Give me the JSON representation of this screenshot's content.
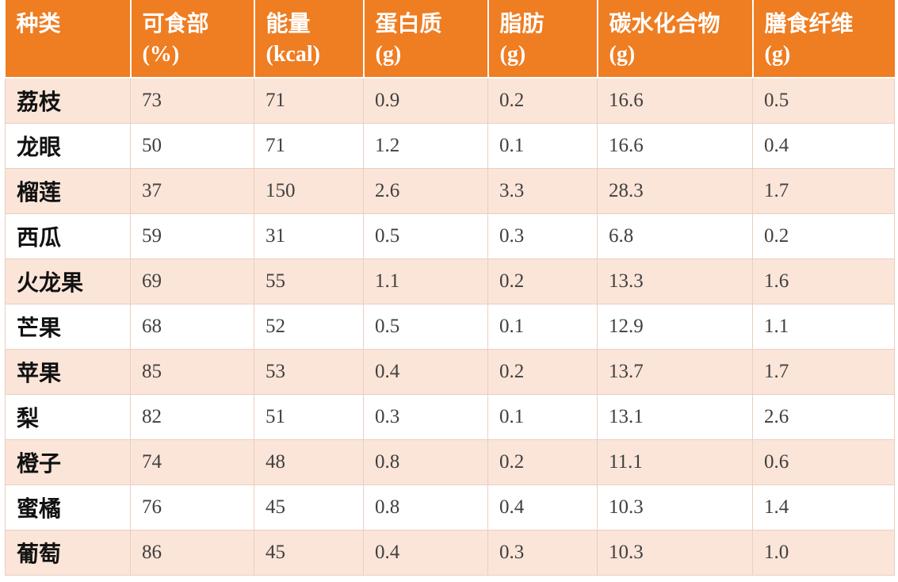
{
  "table": {
    "header": [
      {
        "name": "种类"
      },
      {
        "name": "可食部",
        "unit": "(%)"
      },
      {
        "name": "能量",
        "unit": "(kcal)"
      },
      {
        "name": "蛋白质",
        "unit": "(g)"
      },
      {
        "name": "脂肪",
        "unit": "(g)"
      },
      {
        "name": "碳水化合物",
        "unit": "(g)"
      },
      {
        "name": "膳食纤维",
        "unit": "(g)"
      }
    ],
    "rows": [
      [
        "荔枝",
        "73",
        "71",
        "0.9",
        "0.2",
        "16.6",
        "0.5"
      ],
      [
        "龙眼",
        "50",
        "71",
        "1.2",
        "0.1",
        "16.6",
        "0.4"
      ],
      [
        "榴莲",
        "37",
        "150",
        "2.6",
        "3.3",
        "28.3",
        "1.7"
      ],
      [
        "西瓜",
        "59",
        "31",
        "0.5",
        "0.3",
        "6.8",
        "0.2"
      ],
      [
        "火龙果",
        "69",
        "55",
        "1.1",
        "0.2",
        "13.3",
        "1.6"
      ],
      [
        "芒果",
        "68",
        "52",
        "0.5",
        "0.1",
        "12.9",
        "1.1"
      ],
      [
        "苹果",
        "85",
        "53",
        "0.4",
        "0.2",
        "13.7",
        "1.7"
      ],
      [
        "梨",
        "82",
        "51",
        "0.3",
        "0.1",
        "13.1",
        "2.6"
      ],
      [
        "橙子",
        "74",
        "48",
        "0.8",
        "0.2",
        "11.1",
        "0.6"
      ],
      [
        "蜜橘",
        "76",
        "45",
        "0.8",
        "0.4",
        "10.3",
        "1.4"
      ],
      [
        "葡萄",
        "86",
        "45",
        "0.4",
        "0.3",
        "10.3",
        "1.0"
      ]
    ]
  }
}
